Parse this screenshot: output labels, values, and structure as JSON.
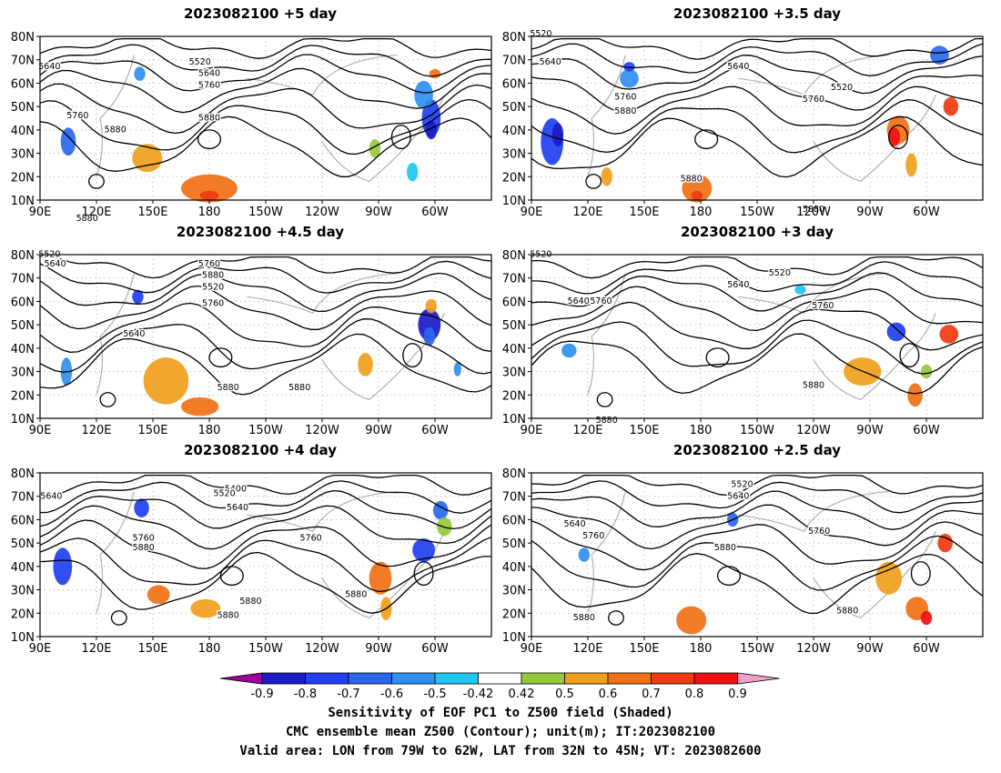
{
  "panels": [
    {
      "title": "2023082100  +5  day",
      "contour_labels": [
        "5640",
        "5520",
        "5640",
        "5760",
        "5760",
        "5880",
        "5880",
        "5880"
      ]
    },
    {
      "title": "2023082100  +3.5  day",
      "contour_labels": [
        "5520",
        "5640",
        "5760",
        "5880",
        "5640",
        "5520",
        "5760",
        "5880",
        "5880"
      ]
    },
    {
      "title": "2023082100  +4.5  day",
      "contour_labels": [
        "5520",
        "5640",
        "5760",
        "5880",
        "5520",
        "5640",
        "5760",
        "5880",
        "5880"
      ]
    },
    {
      "title": "2023082100  +3  day",
      "contour_labels": [
        "5520",
        "5640",
        "5760",
        "5880",
        "5520",
        "5640",
        "5760",
        "5880"
      ]
    },
    {
      "title": "2023082100  +4  day",
      "contour_labels": [
        "5640",
        "5400",
        "5520",
        "5640",
        "5760",
        "5880",
        "5760",
        "5880",
        "5880",
        "5880"
      ]
    },
    {
      "title": "2023082100  +2.5  day",
      "contour_labels": [
        "5520",
        "5640",
        "5640",
        "5760",
        "5880",
        "5760",
        "5880",
        "5880"
      ]
    }
  ],
  "lat_ticks": [
    "10N",
    "20N",
    "30N",
    "40N",
    "50N",
    "60N",
    "70N",
    "80N"
  ],
  "lon_ticks": [
    "90E",
    "120E",
    "150E",
    "180",
    "150W",
    "120W",
    "90W",
    "60W"
  ],
  "colorbar": {
    "labels": [
      "-0.9",
      "-0.8",
      "-0.7",
      "-0.6",
      "-0.5",
      "-0.42",
      "0.42",
      "0.5",
      "0.6",
      "0.7",
      "0.8",
      "0.9"
    ],
    "colors": [
      "#a0009f",
      "#1b1bc8",
      "#1f3ff0",
      "#2a68f0",
      "#2f8ff0",
      "#20c7f0",
      "#ffffff",
      "#96c83c",
      "#f0a01c",
      "#f07014",
      "#f03a10",
      "#f01010",
      "#f0a0c8"
    ]
  },
  "captions": {
    "line1": "Sensitivity of EOF PC1 to Z500 field (Shaded)",
    "line2": "CMC ensemble mean Z500 (Contour); unit(m); IT:2023082100",
    "line3": "Valid area: LON from 79W to 62W, LAT from 32N to 45N; VT: 2023082600"
  }
}
